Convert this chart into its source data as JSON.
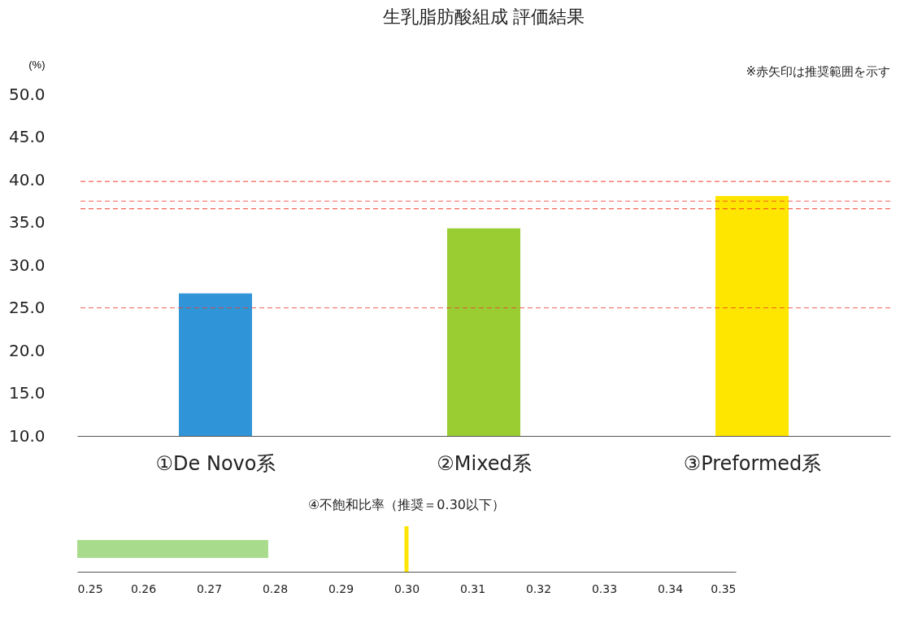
{
  "chart_data": [
    {
      "type": "bar",
      "title": "生乳脂肪酸組成  評価結果",
      "ylabel": "(%)",
      "annotations": [
        "※赤矢印は推奨範囲を示す"
      ],
      "categories": [
        "①De Novo系",
        "②Mixed系",
        "③Preformed系"
      ],
      "values": [
        26.7,
        34.3,
        38.1
      ],
      "colors": [
        "#2f95d8",
        "#9acd32",
        "#ffe600"
      ],
      "ylim": [
        10,
        50
      ],
      "yticks": [
        {
          "value": 10,
          "label": "10.0"
        },
        {
          "value": 15,
          "label": "15.0"
        },
        {
          "value": 20,
          "label": "20.0"
        },
        {
          "value": 25,
          "label": "25.0"
        },
        {
          "value": 30,
          "label": "30.0"
        },
        {
          "value": 35,
          "label": "35.0"
        },
        {
          "value": 40,
          "label": "40.0"
        },
        {
          "value": 45,
          "label": "45.0"
        },
        {
          "value": 50,
          "label": "50.0"
        }
      ],
      "ref_lines": [
        {
          "axis": "y",
          "value": 25.0,
          "color": "#f03c2c",
          "line_style": "dashed"
        },
        {
          "axis": "y",
          "value": 36.6,
          "color": "#f03c2c",
          "line_style": "dashed"
        },
        {
          "axis": "y",
          "value": 39.8,
          "color": "#f03c2c",
          "line_style": "dashed"
        },
        {
          "axis": "y",
          "value": 37.5,
          "color": "#f03c2c",
          "line_style": "dashed"
        }
      ],
      "grid": false
    },
    {
      "type": "bar",
      "orientation": "horizontal",
      "title": "④不飽和比率（推奨＝0.30以下）",
      "categories": [
        null
      ],
      "values": [
        0.279
      ],
      "colors": [
        "#a8dc8c"
      ],
      "xlim": [
        0.25,
        0.35
      ],
      "xticks": [
        0.25,
        0.26,
        0.27,
        0.28,
        0.29,
        {
          "value": 0.3,
          "label": "0.30"
        },
        0.31,
        0.32,
        0.33,
        0.34,
        0.35
      ],
      "ref_lines": [
        {
          "axis": "x",
          "value": 0.3,
          "color": "#ffe600",
          "line_style": "solid"
        }
      ],
      "grid": false
    }
  ]
}
